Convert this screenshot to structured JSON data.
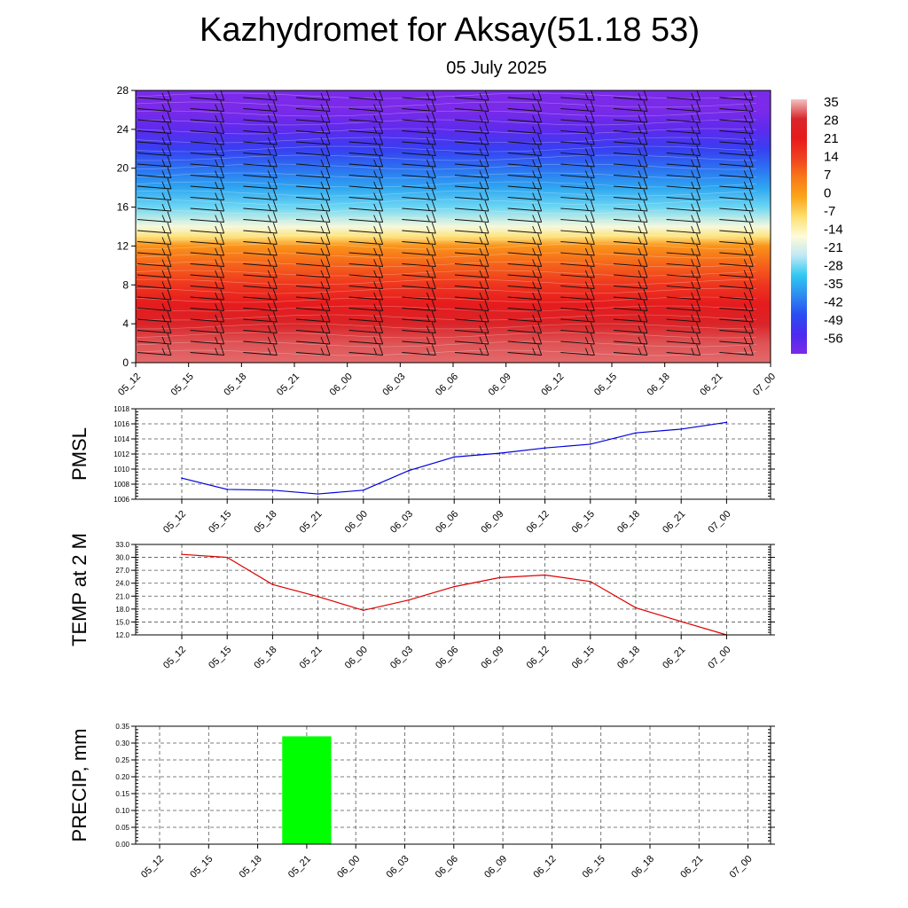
{
  "title": "Kazhydromet for Aksay(51.18 53)",
  "subtitle": "05 July 2025",
  "time_labels": [
    "05_12",
    "05_15",
    "05_18",
    "05_21",
    "06_00",
    "06_03",
    "06_06",
    "06_09",
    "06_12",
    "06_15",
    "06_18",
    "06_21",
    "07_00"
  ],
  "chart_data": [
    {
      "type": "heatmap",
      "y_ticks": [
        "0",
        "4",
        "8",
        "12",
        "16",
        "20",
        "24",
        "28"
      ],
      "ylim": [
        0,
        28
      ],
      "colorbar": {
        "labels": [
          "35",
          "28",
          "21",
          "14",
          "7",
          "0",
          "-7",
          "-14",
          "-21",
          "-28",
          "-35",
          "-42",
          "-49",
          "-56"
        ],
        "colors": [
          "#f2c2c2",
          "#d8262a",
          "#e8191b",
          "#f04020",
          "#f87a18",
          "#fba51a",
          "#fde070",
          "#fffbd8",
          "#bfe8f4",
          "#2ec8f2",
          "#2e8cf0",
          "#2a4df2",
          "#4b2af0",
          "#7a2ae8"
        ]
      },
      "temperature_profile": {
        "heights": [
          0,
          2,
          4,
          6,
          8,
          10,
          12,
          13,
          14,
          16,
          18,
          20,
          22,
          24,
          26,
          28
        ],
        "values": [
          31,
          30,
          27,
          22,
          16,
          10,
          3,
          -8,
          -15,
          -25,
          -32,
          -38,
          -45,
          -52,
          -56,
          -58
        ]
      },
      "wind_barbs": true
    },
    {
      "type": "line",
      "ylabel": "PMSL",
      "ylim": [
        1006,
        1018
      ],
      "y_ticks": [
        "1006",
        "1008",
        "1010",
        "1012",
        "1014",
        "1016",
        "1018"
      ],
      "series": [
        {
          "values": [
            1008.8,
            1007.3,
            1007.2,
            1006.7,
            1007.2,
            1009.8,
            1011.6,
            1012.1,
            1012.8,
            1013.3,
            1014.8,
            1015.3,
            1016.2
          ]
        }
      ],
      "color": "#0000dd"
    },
    {
      "type": "line",
      "ylabel": "TEMP at 2 M",
      "ylim": [
        12,
        33
      ],
      "y_ticks": [
        "12.0",
        "15.0",
        "18.0",
        "21.0",
        "24.0",
        "27.0",
        "30.0",
        "33.0"
      ],
      "series": [
        {
          "values": [
            30.7,
            30.0,
            23.7,
            20.9,
            17.7,
            20.1,
            23.2,
            25.3,
            25.9,
            24.4,
            18.3,
            15.1,
            12.0
          ]
        }
      ],
      "color": "#dd0000"
    },
    {
      "type": "bar",
      "ylabel": "PRECIP, mm",
      "ylim": [
        0,
        0.35
      ],
      "y_ticks": [
        "0.00",
        "0.05",
        "0.10",
        "0.15",
        "0.20",
        "0.25",
        "0.30",
        "0.35"
      ],
      "values": [
        0,
        0,
        0,
        0.32,
        0,
        0,
        0,
        0,
        0,
        0,
        0,
        0,
        0
      ],
      "color": "#00ff00"
    }
  ]
}
